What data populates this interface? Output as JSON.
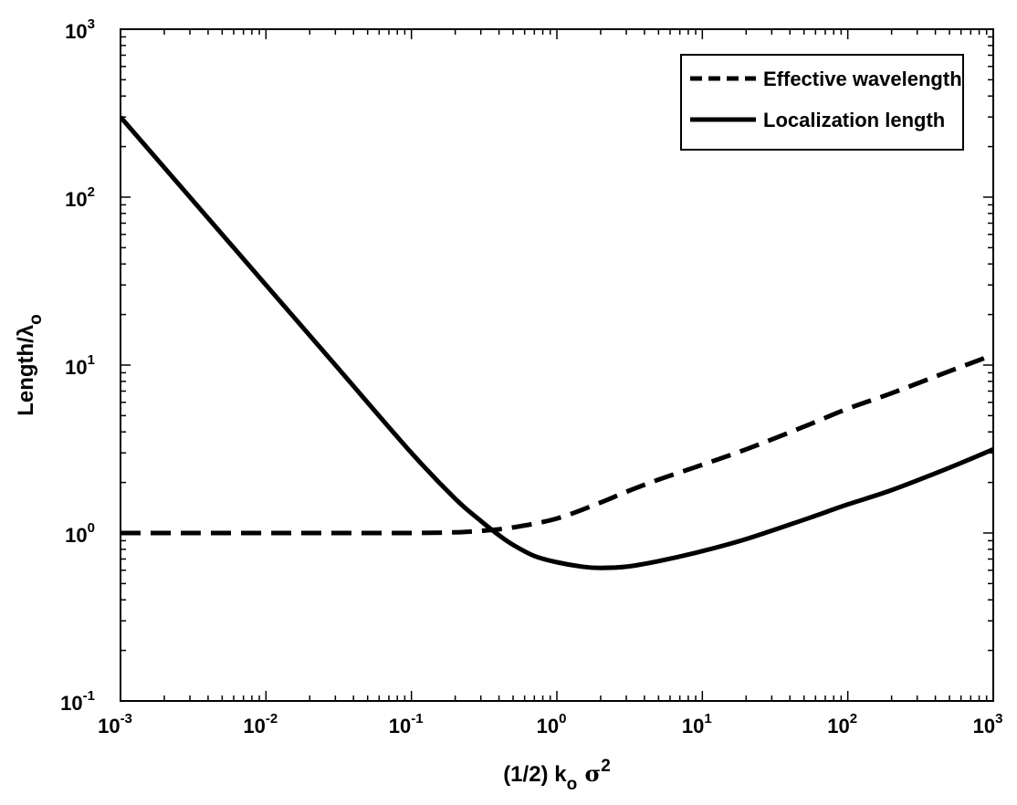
{
  "chart_data": {
    "type": "line",
    "x_scale": "log",
    "y_scale": "log",
    "xlim": [
      0.001,
      1000
    ],
    "ylim": [
      0.1,
      1000
    ],
    "xlabel": {
      "text": "(1/2) k",
      "sub": "o",
      "greek": " σ",
      "sup": "2"
    },
    "ylabel": {
      "text": "Length/λ",
      "sub": "o"
    },
    "x_ticks": [
      {
        "base": "10",
        "exp": "-3",
        "value": 0.001
      },
      {
        "base": "10",
        "exp": "-2",
        "value": 0.01
      },
      {
        "base": "10",
        "exp": "-1",
        "value": 0.1
      },
      {
        "base": "10",
        "exp": "0",
        "value": 1
      },
      {
        "base": "10",
        "exp": "1",
        "value": 10
      },
      {
        "base": "10",
        "exp": "2",
        "value": 100
      },
      {
        "base": "10",
        "exp": "3",
        "value": 1000
      }
    ],
    "y_ticks": [
      {
        "base": "10",
        "exp": "-1",
        "value": 0.1
      },
      {
        "base": "10",
        "exp": "0",
        "value": 1
      },
      {
        "base": "10",
        "exp": "1",
        "value": 10
      },
      {
        "base": "10",
        "exp": "2",
        "value": 100
      },
      {
        "base": "10",
        "exp": "3",
        "value": 1000
      }
    ],
    "grid": false,
    "legend_position": "top-right",
    "series": [
      {
        "name": "Effective wavelength",
        "style": "dashed",
        "color": "#000000",
        "x": [
          0.001,
          0.003,
          0.01,
          0.03,
          0.1,
          0.2,
          0.3,
          0.5,
          1,
          2,
          3,
          5,
          10,
          20,
          50,
          100,
          200,
          500,
          1000
        ],
        "y": [
          1.0,
          1.0,
          1.0,
          1.0,
          1.0,
          1.01,
          1.03,
          1.08,
          1.22,
          1.52,
          1.76,
          2.08,
          2.55,
          3.15,
          4.3,
          5.5,
          6.8,
          9.2,
          11.5
        ]
      },
      {
        "name": "Localization length",
        "style": "solid",
        "color": "#000000",
        "x": [
          0.001,
          0.003,
          0.01,
          0.03,
          0.1,
          0.2,
          0.3,
          0.4,
          0.5,
          0.7,
          1,
          1.5,
          2,
          3,
          5,
          10,
          20,
          50,
          100,
          200,
          500,
          1000
        ],
        "y": [
          300,
          100,
          30,
          10,
          3.0,
          1.6,
          1.18,
          0.97,
          0.85,
          0.73,
          0.67,
          0.63,
          0.62,
          0.63,
          0.68,
          0.78,
          0.92,
          1.2,
          1.48,
          1.8,
          2.45,
          3.15
        ]
      }
    ]
  }
}
